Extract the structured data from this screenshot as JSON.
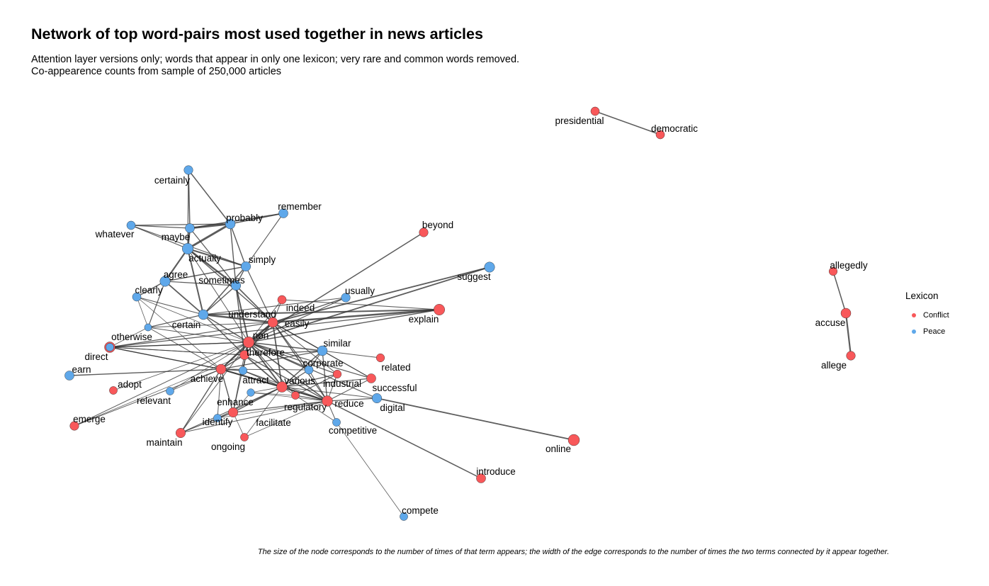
{
  "header": {
    "title": "Network of top word-pairs most used together in news articles",
    "subtitle_line1": "Attention layer versions only; words that appear in only one lexicon; very rare and common words removed.",
    "subtitle_line2": "Co-appearence counts from sample of 250,000 articles"
  },
  "caption": "The size of the node corresponds to the number of times of that term appears; the width of the edge corresponds to the number of times the two terms connected by it appear together.",
  "legend": {
    "title": "Lexicon",
    "items": [
      {
        "label": "Conflict",
        "color": "#F8585A"
      },
      {
        "label": "Peace",
        "color": "#5FA8EA"
      }
    ]
  },
  "colors": {
    "Conflict": "#F8585A",
    "Peace": "#5FA8EA",
    "edge": "#333333"
  },
  "nodes": [
    {
      "label": "presidential",
      "lexicon": "Conflict",
      "size": 1.2
    },
    {
      "label": "democratic",
      "lexicon": "Conflict",
      "size": 1.2
    },
    {
      "label": "certainly",
      "lexicon": "Peace",
      "size": 1.3
    },
    {
      "label": "remember",
      "lexicon": "Peace",
      "size": 1.4
    },
    {
      "label": "beyond",
      "lexicon": "Conflict",
      "size": 1.3
    },
    {
      "label": "probably",
      "lexicon": "Peace",
      "size": 1.6
    },
    {
      "label": "whatever",
      "lexicon": "Peace",
      "size": 1.2
    },
    {
      "label": "maybe",
      "lexicon": "Peace",
      "size": 1.4
    },
    {
      "label": "actually",
      "lexicon": "Peace",
      "size": 1.9
    },
    {
      "label": "simply",
      "lexicon": "Peace",
      "size": 1.5
    },
    {
      "label": "suggest",
      "lexicon": "Peace",
      "size": 1.7
    },
    {
      "label": "allegedly",
      "lexicon": "Conflict",
      "size": 1.1
    },
    {
      "label": "agree",
      "lexicon": "Peace",
      "size": 1.7
    },
    {
      "label": "sometimes",
      "lexicon": "Peace",
      "size": 1.5
    },
    {
      "label": "clearly",
      "lexicon": "Peace",
      "size": 1.2
    },
    {
      "label": "usually",
      "lexicon": "Peace",
      "size": 1.3
    },
    {
      "label": "understand",
      "lexicon": "Peace",
      "size": 1.6
    },
    {
      "label": "indeed",
      "lexicon": "Conflict",
      "size": 1.2
    },
    {
      "label": "explain",
      "lexicon": "Conflict",
      "size": 1.9
    },
    {
      "label": "accuse",
      "lexicon": "Conflict",
      "size": 1.6
    },
    {
      "label": "certain",
      "lexicon": "Peace",
      "size": 0.8
    },
    {
      "label": "easily",
      "lexicon": "Conflict",
      "size": 1.6
    },
    {
      "label": "otherwise",
      "lexicon": "Conflict",
      "size": 1.8
    },
    {
      "label": "non",
      "lexicon": "Conflict",
      "size": 1.9
    },
    {
      "label": "similar",
      "lexicon": "Peace",
      "size": 1.6
    },
    {
      "label": "direct",
      "lexicon": "Peace",
      "size": 1.0
    },
    {
      "label": "therefore",
      "lexicon": "Conflict",
      "size": 1.4
    },
    {
      "label": "related",
      "lexicon": "Conflict",
      "size": 1.1
    },
    {
      "label": "allege",
      "lexicon": "Conflict",
      "size": 1.3
    },
    {
      "label": "earn",
      "lexicon": "Peace",
      "size": 1.4
    },
    {
      "label": "corporate",
      "lexicon": "Peace",
      "size": 1.2
    },
    {
      "label": "achieve",
      "lexicon": "Conflict",
      "size": 1.6
    },
    {
      "label": "attract",
      "lexicon": "Peace",
      "size": 1.1
    },
    {
      "label": "various",
      "lexicon": "Conflict",
      "size": 1.8
    },
    {
      "label": "industrial",
      "lexicon": "Conflict",
      "size": 1.1
    },
    {
      "label": "successful",
      "lexicon": "Conflict",
      "size": 1.4
    },
    {
      "label": "adopt",
      "lexicon": "Conflict",
      "size": 1.0
    },
    {
      "label": "relevant",
      "lexicon": "Peace",
      "size": 1.0
    },
    {
      "label": "reduce",
      "lexicon": "Conflict",
      "size": 1.8
    },
    {
      "label": "digital",
      "lexicon": "Peace",
      "size": 1.5
    },
    {
      "label": "enhance",
      "lexicon": "Conflict",
      "size": 1.5
    },
    {
      "label": "regulatory",
      "lexicon": "Conflict",
      "size": 1.0
    },
    {
      "label": "emerge",
      "lexicon": "Conflict",
      "size": 1.3
    },
    {
      "label": "identify",
      "lexicon": "Peace",
      "size": 1.0
    },
    {
      "label": "facilitate",
      "lexicon": "Peace",
      "size": 0.9
    },
    {
      "label": "maintain",
      "lexicon": "Conflict",
      "size": 1.5
    },
    {
      "label": "competitive",
      "lexicon": "Peace",
      "size": 1.0
    },
    {
      "label": "ongoing",
      "lexicon": "Conflict",
      "size": 1.0
    },
    {
      "label": "online",
      "lexicon": "Conflict",
      "size": 2.0
    },
    {
      "label": "introduce",
      "lexicon": "Conflict",
      "size": 1.4
    },
    {
      "label": "compete",
      "lexicon": "Peace",
      "size": 1.0
    }
  ],
  "edges": [
    [
      "presidential",
      "democratic",
      1.5
    ],
    [
      "allegedly",
      "accuse",
      1.5
    ],
    [
      "accuse",
      "allege",
      2.2
    ],
    [
      "certainly",
      "maybe",
      1.5
    ],
    [
      "certainly",
      "probably",
      1.5
    ],
    [
      "certainly",
      "actually",
      1.2
    ],
    [
      "remember",
      "probably",
      1.6
    ],
    [
      "remember",
      "maybe",
      1.4
    ],
    [
      "remember",
      "simply",
      1.1
    ],
    [
      "whatever",
      "probably",
      1.3
    ],
    [
      "whatever",
      "maybe",
      1.2
    ],
    [
      "whatever",
      "actually",
      1.2
    ],
    [
      "whatever",
      "simply",
      1.1
    ],
    [
      "probably",
      "maybe",
      2.8
    ],
    [
      "probably",
      "actually",
      2.8
    ],
    [
      "probably",
      "simply",
      1.4
    ],
    [
      "probably",
      "sometimes",
      1.4
    ],
    [
      "maybe",
      "actually",
      2.4
    ],
    [
      "maybe",
      "sometimes",
      1.3
    ],
    [
      "actually",
      "simply",
      2.0
    ],
    [
      "actually",
      "sometimes",
      2.4
    ],
    [
      "actually",
      "agree",
      2.2
    ],
    [
      "actually",
      "understand",
      2.0
    ],
    [
      "actually",
      "easily",
      1.3
    ],
    [
      "actually",
      "non",
      1.0
    ],
    [
      "simply",
      "agree",
      1.4
    ],
    [
      "simply",
      "sometimes",
      1.4
    ],
    [
      "simply",
      "understand",
      1.5
    ],
    [
      "simply",
      "easily",
      1.2
    ],
    [
      "agree",
      "clearly",
      1.4
    ],
    [
      "agree",
      "sometimes",
      1.2
    ],
    [
      "agree",
      "understand",
      1.8
    ],
    [
      "agree",
      "certain",
      1.2
    ],
    [
      "sometimes",
      "understand",
      1.5
    ],
    [
      "sometimes",
      "easily",
      1.6
    ],
    [
      "sometimes",
      "non",
      2.0
    ],
    [
      "sometimes",
      "therefore",
      1.4
    ],
    [
      "clearly",
      "understand",
      1.1
    ],
    [
      "clearly",
      "non",
      0.8
    ],
    [
      "clearly",
      "achieve",
      0.8
    ],
    [
      "understand",
      "easily",
      2.5
    ],
    [
      "understand",
      "non",
      1.5
    ],
    [
      "understand",
      "explain",
      2.0
    ],
    [
      "understand",
      "certain",
      1.2
    ],
    [
      "understand",
      "therefore",
      1.4
    ],
    [
      "beyond",
      "non",
      1.5
    ],
    [
      "suggest",
      "easily",
      1.8
    ],
    [
      "suggest",
      "non",
      1.8
    ],
    [
      "explain",
      "easily",
      2.5
    ],
    [
      "explain",
      "non",
      1.4
    ],
    [
      "explain",
      "indeed",
      1.1
    ],
    [
      "usually",
      "easily",
      1.2
    ],
    [
      "usually",
      "non",
      1.2
    ],
    [
      "usually",
      "understand",
      1.1
    ],
    [
      "indeed",
      "easily",
      1.0
    ],
    [
      "indeed",
      "non",
      1.0
    ],
    [
      "easily",
      "non",
      2.2
    ],
    [
      "easily",
      "therefore",
      1.8
    ],
    [
      "easily",
      "similar",
      1.5
    ],
    [
      "easily",
      "achieve",
      1.4
    ],
    [
      "easily",
      "various",
      1.8
    ],
    [
      "easily",
      "reduce",
      1.4
    ],
    [
      "easily",
      "corporate",
      1.2
    ],
    [
      "easily",
      "industrial",
      1.0
    ],
    [
      "easily",
      "successful",
      1.0
    ],
    [
      "easily",
      "otherwise",
      1.2
    ],
    [
      "easily",
      "certain",
      1.0
    ],
    [
      "non",
      "therefore",
      2.0
    ],
    [
      "non",
      "achieve",
      1.8
    ],
    [
      "non",
      "various",
      2.0
    ],
    [
      "non",
      "reduce",
      1.6
    ],
    [
      "non",
      "similar",
      1.5
    ],
    [
      "non",
      "corporate",
      1.4
    ],
    [
      "non",
      "successful",
      1.2
    ],
    [
      "non",
      "digital",
      1.2
    ],
    [
      "non",
      "industrial",
      1.2
    ],
    [
      "non",
      "attract",
      1.2
    ],
    [
      "non",
      "enhance",
      1.1
    ],
    [
      "non",
      "otherwise",
      1.3
    ],
    [
      "non",
      "direct",
      1.2
    ],
    [
      "non",
      "certain",
      1.0
    ],
    [
      "non",
      "regulatory",
      1.2
    ],
    [
      "therefore",
      "achieve",
      1.5
    ],
    [
      "therefore",
      "various",
      1.8
    ],
    [
      "therefore",
      "reduce",
      1.3
    ],
    [
      "therefore",
      "similar",
      1.3
    ],
    [
      "therefore",
      "otherwise",
      1.0
    ],
    [
      "therefore",
      "direct",
      1.0
    ],
    [
      "therefore",
      "enhance",
      1.0
    ],
    [
      "similar",
      "various",
      1.5
    ],
    [
      "similar",
      "related",
      1.0
    ],
    [
      "similar",
      "reduce",
      1.3
    ],
    [
      "similar",
      "achieve",
      1.2
    ],
    [
      "similar",
      "corporate",
      1.1
    ],
    [
      "similar",
      "successful",
      1.1
    ],
    [
      "corporate",
      "various",
      1.2
    ],
    [
      "corporate",
      "achieve",
      1.0
    ],
    [
      "corporate",
      "reduce",
      1.1
    ],
    [
      "achieve",
      "various",
      2.0
    ],
    [
      "achieve",
      "reduce",
      1.6
    ],
    [
      "achieve",
      "attract",
      1.4
    ],
    [
      "achieve",
      "enhance",
      1.4
    ],
    [
      "achieve",
      "maintain",
      1.4
    ],
    [
      "achieve",
      "identify",
      1.0
    ],
    [
      "achieve",
      "otherwise",
      1.2
    ],
    [
      "achieve",
      "direct",
      1.3
    ],
    [
      "achieve",
      "earn",
      1.4
    ],
    [
      "achieve",
      "certain",
      1.0
    ],
    [
      "achieve",
      "relevant",
      0.8
    ],
    [
      "achieve",
      "emerge",
      1.0
    ],
    [
      "attract",
      "various",
      1.2
    ],
    [
      "attract",
      "reduce",
      1.0
    ],
    [
      "various",
      "reduce",
      1.8
    ],
    [
      "various",
      "industrial",
      1.2
    ],
    [
      "various",
      "successful",
      1.2
    ],
    [
      "various",
      "enhance",
      1.3
    ],
    [
      "various",
      "regulatory",
      1.0
    ],
    [
      "various",
      "facilitate",
      0.8
    ],
    [
      "various",
      "identify",
      1.0
    ],
    [
      "various",
      "maintain",
      1.0
    ],
    [
      "various",
      "digital",
      1.0
    ],
    [
      "industrial",
      "reduce",
      1.0
    ],
    [
      "industrial",
      "regulatory",
      1.0
    ],
    [
      "successful",
      "reduce",
      1.0
    ],
    [
      "reduce",
      "digital",
      1.2
    ],
    [
      "reduce",
      "enhance",
      1.2
    ],
    [
      "reduce",
      "regulatory",
      1.2
    ],
    [
      "reduce",
      "competitive",
      1.0
    ],
    [
      "reduce",
      "maintain",
      1.0
    ],
    [
      "reduce",
      "introduce",
      1.5
    ],
    [
      "reduce",
      "facilitate",
      0.8
    ],
    [
      "reduce",
      "identify",
      0.8
    ],
    [
      "reduce",
      "ongoing",
      0.8
    ],
    [
      "enhance",
      "maintain",
      1.0
    ],
    [
      "enhance",
      "identify",
      0.8
    ],
    [
      "enhance",
      "facilitate",
      0.8
    ],
    [
      "enhance",
      "ongoing",
      0.8
    ],
    [
      "regulatory",
      "competitive",
      0.8
    ],
    [
      "regulatory",
      "facilitate",
      0.8
    ],
    [
      "digital",
      "online",
      1.8
    ],
    [
      "competitive",
      "compete",
      0.8
    ],
    [
      "adopt",
      "non",
      0.8
    ],
    [
      "relevant",
      "non",
      0.8
    ],
    [
      "emerge",
      "non",
      1.0
    ],
    [
      "emerge",
      "therefore",
      0.8
    ],
    [
      "direct",
      "explain",
      1.2
    ],
    [
      "otherwise",
      "certain",
      0.8
    ],
    [
      "clearly",
      "certain",
      0.8
    ],
    [
      "maintain",
      "non",
      1.0
    ],
    [
      "ongoing",
      "various",
      0.8
    ]
  ]
}
